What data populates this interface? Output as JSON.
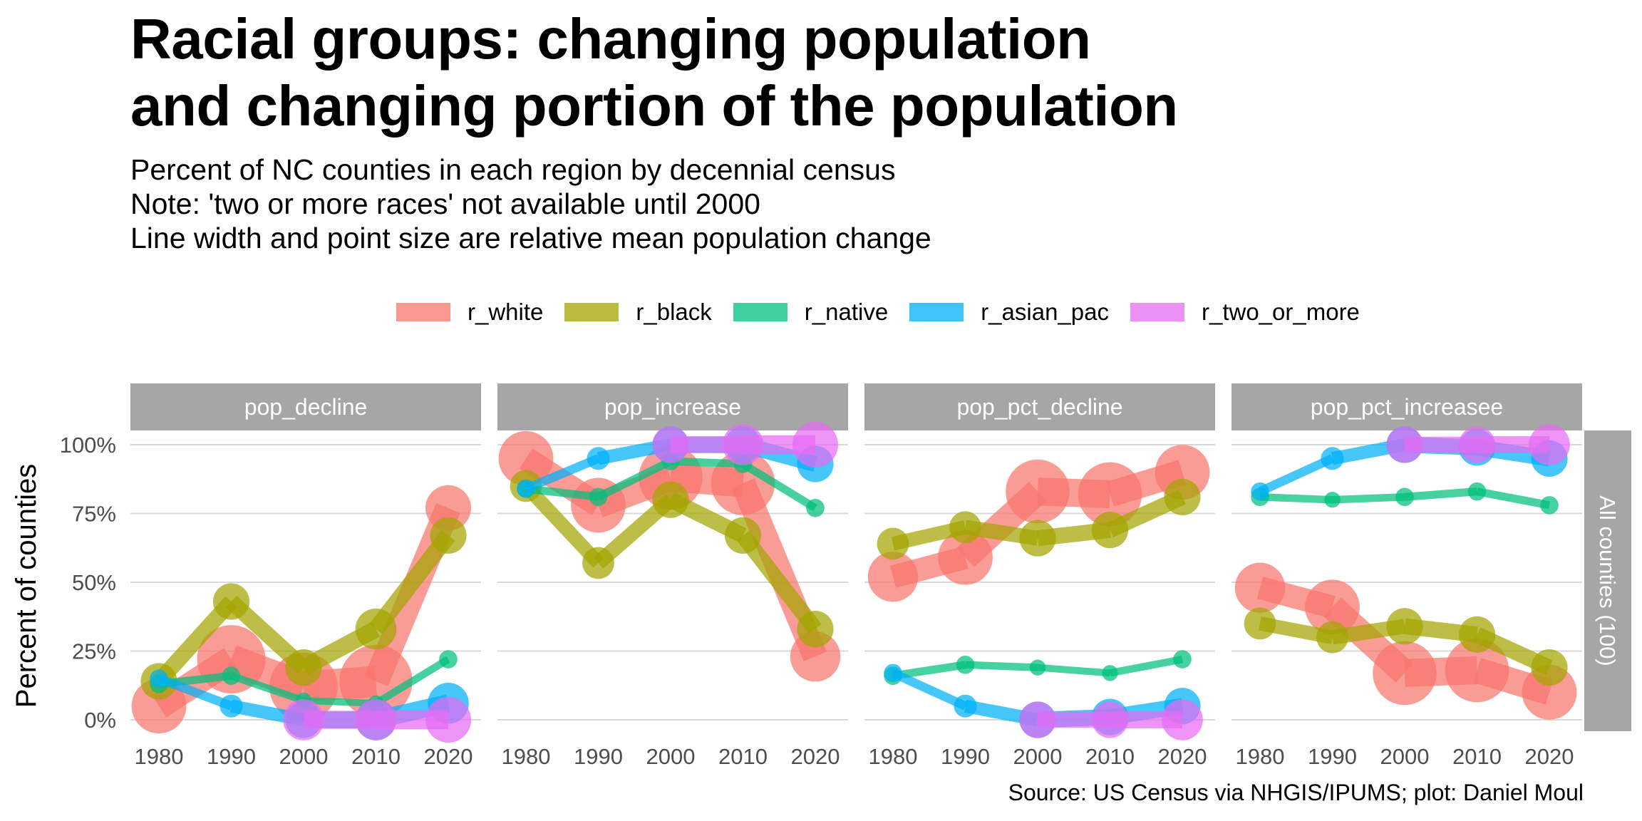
{
  "title_line1": "Racial groups: changing population",
  "title_line2": "and changing portion of the population",
  "subtitle_line1": "Percent of NC counties in each region by decennial census",
  "subtitle_line2": "Note: 'two or more races' not available until 2000",
  "subtitle_line3": "Line width and point size are relative mean population change",
  "caption": "Source: US Census via NHGIS/IPUMS; plot: Daniel Moul",
  "chart_data": {
    "type": "line",
    "title": "Racial groups: changing population and changing portion of the population",
    "ylabel": "Percent of counties",
    "xlabel": "",
    "x": [
      1980,
      1990,
      2000,
      2010,
      2020
    ],
    "y_ticks": [
      "0%",
      "25%",
      "50%",
      "75%",
      "100%"
    ],
    "ylim": [
      0,
      100
    ],
    "grid": "horizontal",
    "legend_position": "top",
    "row_strip": "All counties (100)",
    "series_names": [
      "r_white",
      "r_black",
      "r_native",
      "r_asian_pac",
      "r_two_or_more"
    ],
    "colors": {
      "r_white": "#F8766D",
      "r_black": "#A3A500",
      "r_native": "#00BF7D",
      "r_asian_pac": "#00B0F6",
      "r_two_or_more": "#E76BF3"
    },
    "panels": [
      {
        "name": "pop_decline",
        "series": [
          {
            "name": "r_white",
            "values": [
              5,
              22,
              12,
              14,
              77
            ],
            "size": [
              2.4,
              3.0,
              3.0,
              3.2,
              2.0
            ]
          },
          {
            "name": "r_black",
            "values": [
              14,
              43,
              19,
              33,
              67
            ],
            "size": [
              1.6,
              1.6,
              1.6,
              1.8,
              1.6
            ]
          },
          {
            "name": "r_native",
            "values": [
              13,
              16,
              7,
              6,
              22
            ],
            "size": [
              0.8,
              0.8,
              0.7,
              0.7,
              0.8
            ]
          },
          {
            "name": "r_asian_pac",
            "values": [
              15,
              5,
              0,
              0,
              6
            ],
            "size": [
              0.8,
              1.0,
              1.6,
              1.8,
              1.8
            ]
          },
          {
            "name": "r_two_or_more",
            "values": [
              null,
              null,
              0,
              0,
              0
            ],
            "size": [
              0,
              0,
              1.8,
              1.8,
              2.0
            ]
          }
        ]
      },
      {
        "name": "pop_increase",
        "series": [
          {
            "name": "r_white",
            "values": [
              95,
              78,
              88,
              86,
              23
            ],
            "size": [
              2.4,
              2.4,
              2.8,
              2.8,
              2.2
            ]
          },
          {
            "name": "r_black",
            "values": [
              85,
              57,
              80,
              67,
              33
            ],
            "size": [
              1.4,
              1.4,
              1.6,
              1.6,
              1.6
            ]
          },
          {
            "name": "r_native",
            "values": [
              84,
              81,
              94,
              93,
              77
            ],
            "size": [
              0.8,
              0.8,
              0.8,
              0.8,
              0.8
            ]
          },
          {
            "name": "r_asian_pac",
            "values": [
              84,
              95,
              100,
              100,
              93
            ],
            "size": [
              0.8,
              1.0,
              1.6,
              1.6,
              1.6
            ]
          },
          {
            "name": "r_two_or_more",
            "values": [
              null,
              null,
              100,
              100,
              100
            ],
            "size": [
              0,
              0,
              1.6,
              1.8,
              2.0
            ]
          }
        ]
      },
      {
        "name": "pop_pct_decline",
        "series": [
          {
            "name": "r_white",
            "values": [
              52,
              59,
              83,
              82,
              90
            ],
            "size": [
              2.2,
              2.4,
              2.8,
              2.8,
              2.4
            ]
          },
          {
            "name": "r_black",
            "values": [
              64,
              70,
              66,
              69,
              81
            ],
            "size": [
              1.4,
              1.4,
              1.6,
              1.6,
              1.6
            ]
          },
          {
            "name": "r_native",
            "values": [
              16,
              20,
              19,
              17,
              22
            ],
            "size": [
              0.8,
              0.8,
              0.7,
              0.7,
              0.8
            ]
          },
          {
            "name": "r_asian_pac",
            "values": [
              17,
              5,
              0,
              1,
              5
            ],
            "size": [
              0.8,
              1.0,
              1.6,
              1.6,
              1.6
            ]
          },
          {
            "name": "r_two_or_more",
            "values": [
              null,
              null,
              0,
              0,
              0
            ],
            "size": [
              0,
              0,
              1.6,
              1.6,
              1.8
            ]
          }
        ]
      },
      {
        "name": "pop_pct_increasee",
        "series": [
          {
            "name": "r_white",
            "values": [
              48,
              41,
              17,
              18,
              10
            ],
            "size": [
              2.2,
              2.4,
              2.8,
              2.8,
              2.4
            ]
          },
          {
            "name": "r_black",
            "values": [
              35,
              30,
              34,
              31,
              19
            ],
            "size": [
              1.4,
              1.4,
              1.6,
              1.6,
              1.6
            ]
          },
          {
            "name": "r_native",
            "values": [
              81,
              80,
              81,
              83,
              78
            ],
            "size": [
              0.8,
              0.7,
              0.8,
              0.8,
              0.8
            ]
          },
          {
            "name": "r_asian_pac",
            "values": [
              83,
              95,
              100,
              99,
              95
            ],
            "size": [
              0.8,
              1.0,
              1.6,
              1.6,
              1.6
            ]
          },
          {
            "name": "r_two_or_more",
            "values": [
              null,
              null,
              100,
              100,
              100
            ],
            "size": [
              0,
              0,
              1.6,
              1.6,
              1.8
            ]
          }
        ]
      }
    ]
  }
}
